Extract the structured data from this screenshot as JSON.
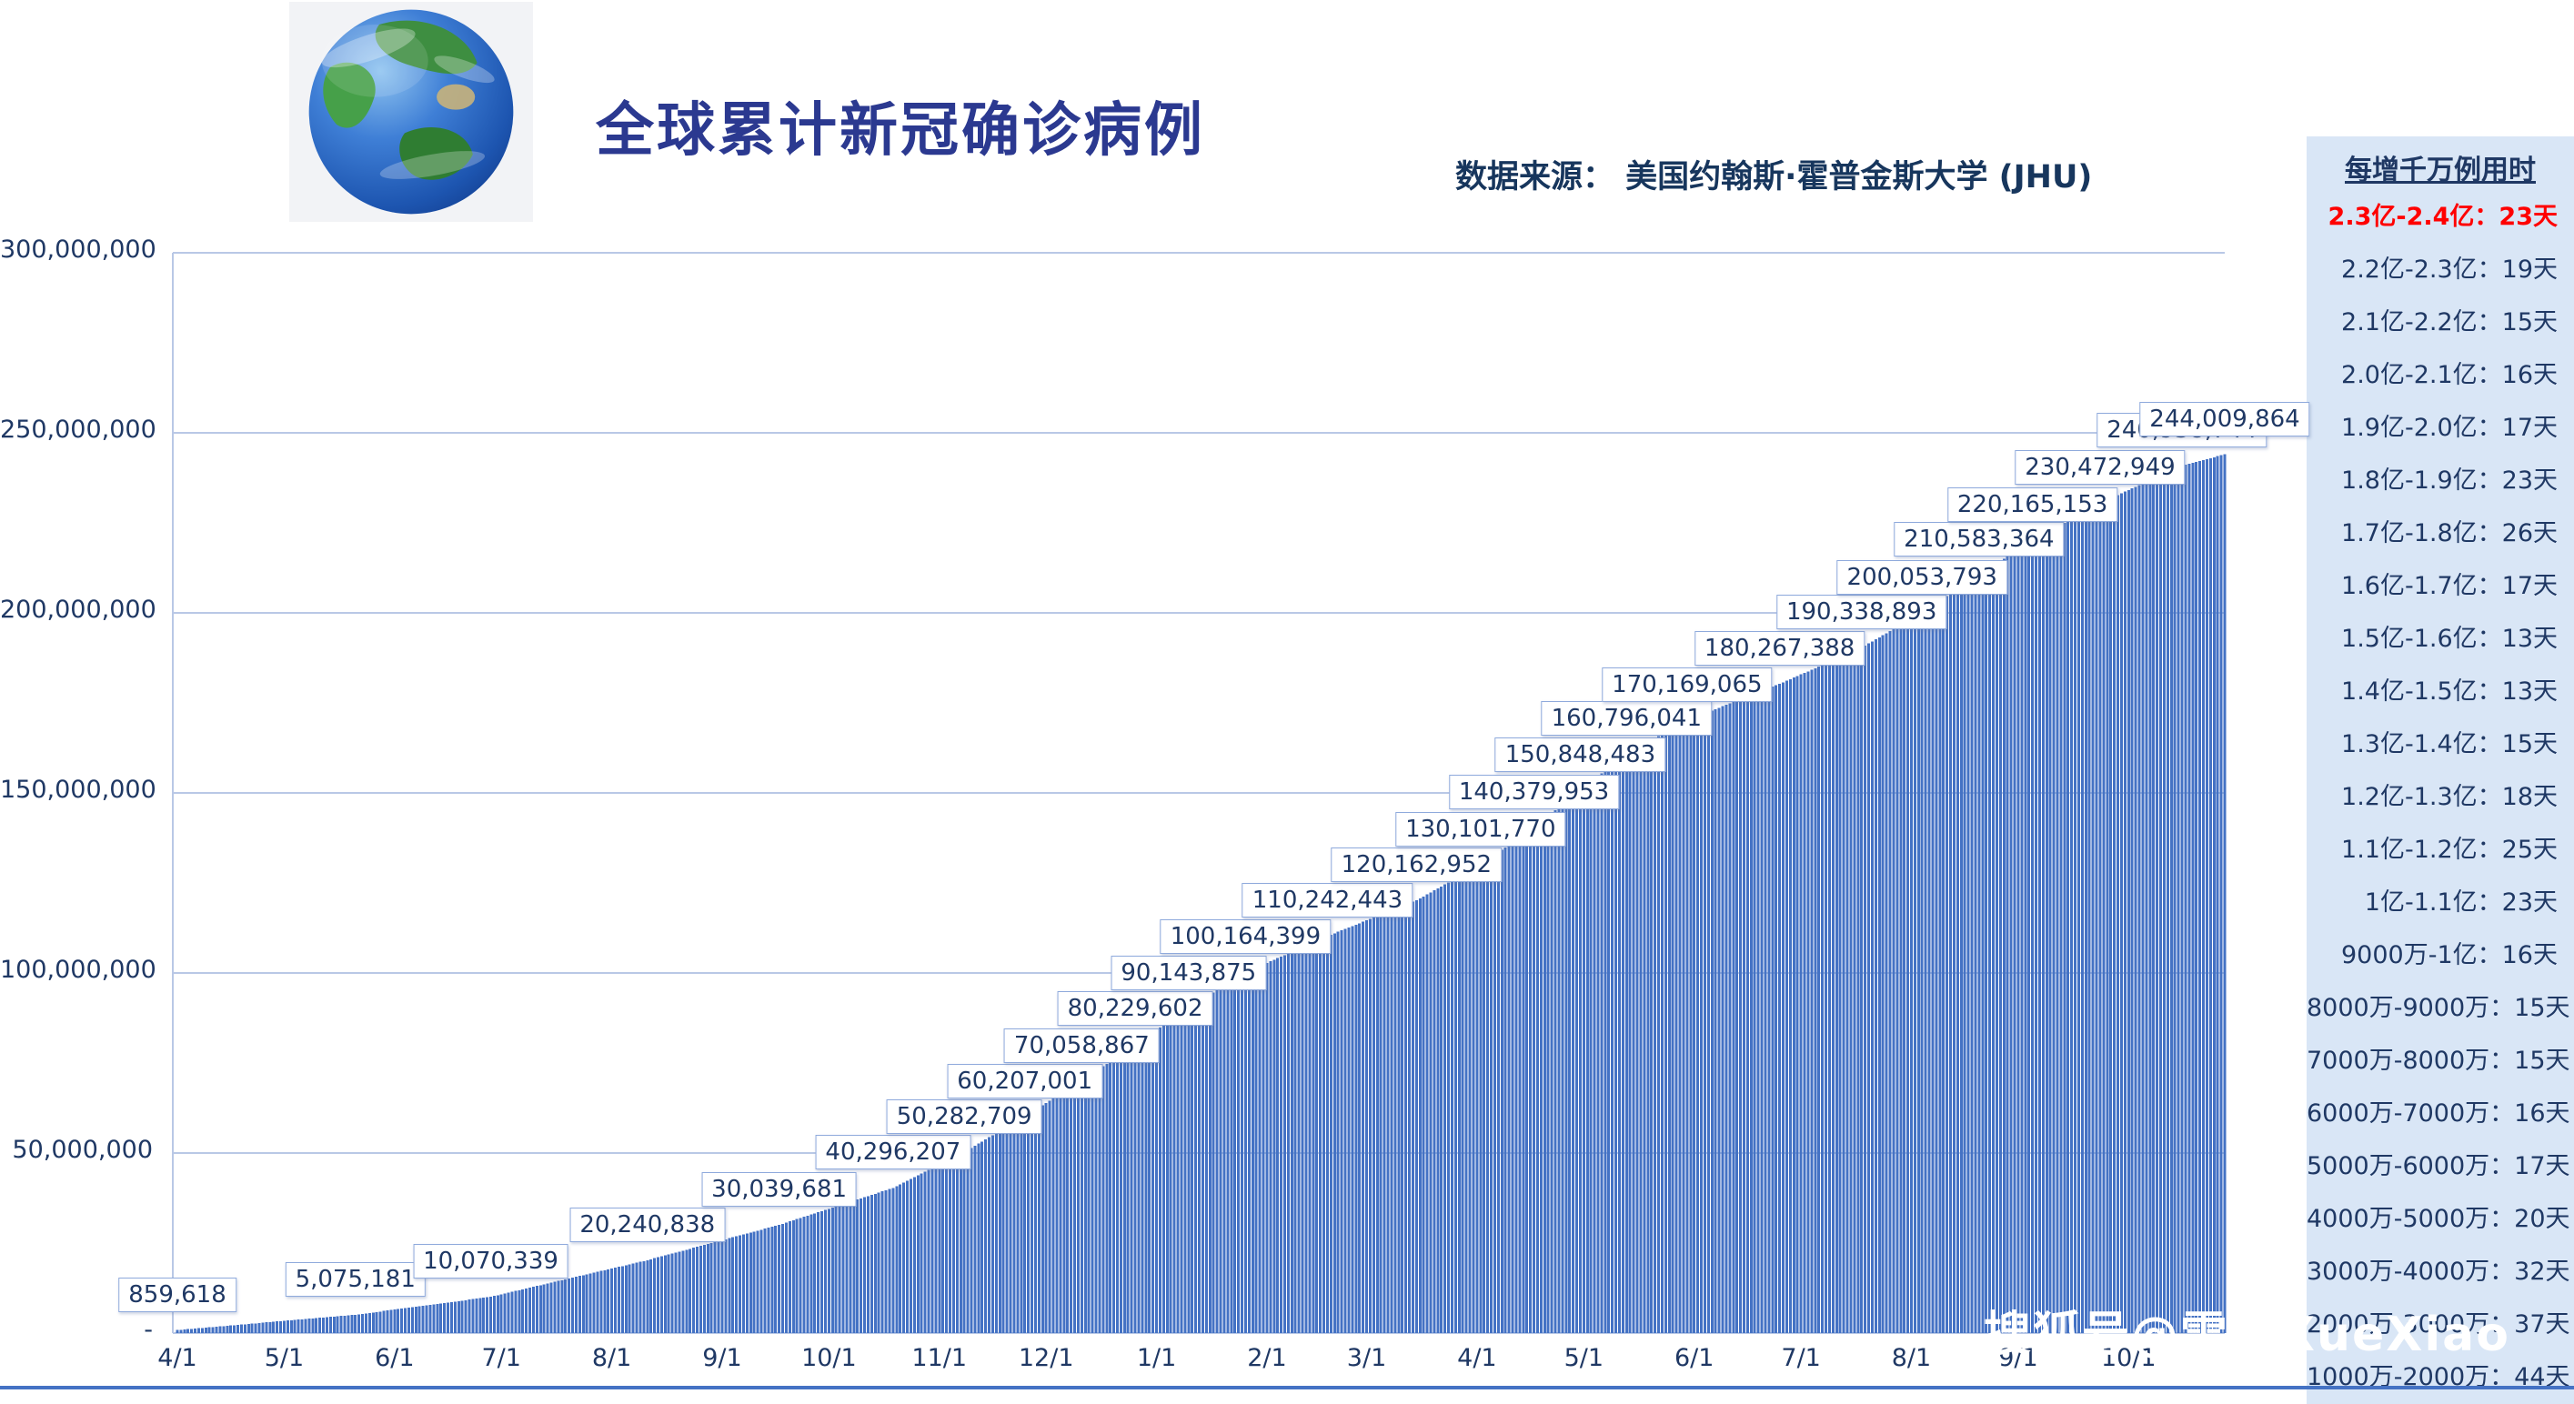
{
  "page": {
    "title": "全球累计新冠确诊病例",
    "source": "数据来源： 美国约翰斯·霍普金斯大学 (JHU)",
    "watermark": "搜狐号@雪鸮XueXiao"
  },
  "colors": {
    "bar_blue": "#4472C4",
    "navy_text": "#1F3864",
    "title_blue": "#2B3990",
    "panel_bg": "#D9E6F6",
    "highlight_red": "#FF0000",
    "gridline": "#B9C8E6"
  },
  "side_panel": {
    "title": "每增千万例用时",
    "rows": [
      {
        "range": "2.3亿-2.4亿",
        "days": "23天",
        "highlight": true
      },
      {
        "range": "2.2亿-2.3亿",
        "days": "19天",
        "highlight": false
      },
      {
        "range": "2.1亿-2.2亿",
        "days": "15天",
        "highlight": false
      },
      {
        "range": "2.0亿-2.1亿",
        "days": "16天",
        "highlight": false
      },
      {
        "range": "1.9亿-2.0亿",
        "days": "17天",
        "highlight": false
      },
      {
        "range": "1.8亿-1.9亿",
        "days": "23天",
        "highlight": false
      },
      {
        "range": "1.7亿-1.8亿",
        "days": "26天",
        "highlight": false
      },
      {
        "range": "1.6亿-1.7亿",
        "days": "17天",
        "highlight": false
      },
      {
        "range": "1.5亿-1.6亿",
        "days": "13天",
        "highlight": false
      },
      {
        "range": "1.4亿-1.5亿",
        "days": "13天",
        "highlight": false
      },
      {
        "range": "1.3亿-1.4亿",
        "days": "15天",
        "highlight": false
      },
      {
        "range": "1.2亿-1.3亿",
        "days": "18天",
        "highlight": false
      },
      {
        "range": "1.1亿-1.2亿",
        "days": "25天",
        "highlight": false
      },
      {
        "range": "1亿-1.1亿",
        "days": "23天",
        "highlight": false
      },
      {
        "range": "9000万-1亿",
        "days": "16天",
        "highlight": false
      },
      {
        "range": "8000万-9000万",
        "days": "15天",
        "highlight": false
      },
      {
        "range": "7000万-8000万",
        "days": "15天",
        "highlight": false
      },
      {
        "range": "6000万-7000万",
        "days": "16天",
        "highlight": false
      },
      {
        "range": "5000万-6000万",
        "days": "17天",
        "highlight": false
      },
      {
        "range": "4000万-5000万",
        "days": "20天",
        "highlight": false
      },
      {
        "range": "3000万-4000万",
        "days": "32天",
        "highlight": false
      },
      {
        "range": "2000万-3000万",
        "days": "37天",
        "highlight": false
      },
      {
        "range": "1000万-2000万",
        "days": "44天",
        "highlight": false
      }
    ]
  },
  "chart_data": {
    "type": "bar",
    "title": "全球累计新冠确诊病例",
    "xlabel": "",
    "ylabel": "",
    "bar_color": "#4472C4",
    "ylim": [
      0,
      300000000
    ],
    "grid": true,
    "y_ticks": [
      {
        "value": 300000000,
        "label": "300,000,000"
      },
      {
        "value": 250000000,
        "label": "250,000,000"
      },
      {
        "value": 200000000,
        "label": "200,000,000"
      },
      {
        "value": 150000000,
        "label": "150,000,000"
      },
      {
        "value": 100000000,
        "label": "100,000,000"
      },
      {
        "value": 50000000,
        "label": "50,000,000"
      },
      {
        "value": 0,
        "label": "-"
      }
    ],
    "x_ticks": [
      {
        "day": 0,
        "label": "4/1"
      },
      {
        "day": 30,
        "label": "5/1"
      },
      {
        "day": 61,
        "label": "6/1"
      },
      {
        "day": 91,
        "label": "7/1"
      },
      {
        "day": 122,
        "label": "8/1"
      },
      {
        "day": 153,
        "label": "9/1"
      },
      {
        "day": 183,
        "label": "10/1"
      },
      {
        "day": 214,
        "label": "11/1"
      },
      {
        "day": 244,
        "label": "12/1"
      },
      {
        "day": 275,
        "label": "1/1"
      },
      {
        "day": 306,
        "label": "2/1"
      },
      {
        "day": 334,
        "label": "3/1"
      },
      {
        "day": 365,
        "label": "4/1"
      },
      {
        "day": 395,
        "label": "5/1"
      },
      {
        "day": 426,
        "label": "6/1"
      },
      {
        "day": 456,
        "label": "7/1"
      },
      {
        "day": 487,
        "label": "8/1"
      },
      {
        "day": 517,
        "label": "9/1"
      },
      {
        "day": 548,
        "label": "10/1"
      }
    ],
    "total_days": 575,
    "milestones": [
      {
        "day": 0,
        "value": 859618,
        "label": "859,618"
      },
      {
        "day": 50,
        "value": 5075181,
        "label": "5,075,181"
      },
      {
        "day": 88,
        "value": 10070339,
        "label": "10,070,339"
      },
      {
        "day": 132,
        "value": 20240838,
        "label": "20,240,838"
      },
      {
        "day": 169,
        "value": 30039681,
        "label": "30,039,681"
      },
      {
        "day": 201,
        "value": 40296207,
        "label": "40,296,207"
      },
      {
        "day": 221,
        "value": 50282709,
        "label": "50,282,709"
      },
      {
        "day": 238,
        "value": 60207001,
        "label": "60,207,001"
      },
      {
        "day": 254,
        "value": 70058867,
        "label": "70,058,867"
      },
      {
        "day": 269,
        "value": 80229602,
        "label": "80,229,602"
      },
      {
        "day": 284,
        "value": 90143875,
        "label": "90,143,875"
      },
      {
        "day": 300,
        "value": 100164399,
        "label": "100,164,399"
      },
      {
        "day": 323,
        "value": 110242443,
        "label": "110,242,443"
      },
      {
        "day": 348,
        "value": 120162952,
        "label": "120,162,952"
      },
      {
        "day": 366,
        "value": 130101770,
        "label": "130,101,770"
      },
      {
        "day": 381,
        "value": 140379953,
        "label": "140,379,953"
      },
      {
        "day": 394,
        "value": 150848483,
        "label": "150,848,483"
      },
      {
        "day": 407,
        "value": 160796041,
        "label": "160,796,041"
      },
      {
        "day": 424,
        "value": 170169065,
        "label": "170,169,065"
      },
      {
        "day": 450,
        "value": 180267388,
        "label": "180,267,388"
      },
      {
        "day": 473,
        "value": 190338893,
        "label": "190,338,893"
      },
      {
        "day": 490,
        "value": 200053793,
        "label": "200,053,793"
      },
      {
        "day": 506,
        "value": 210583364,
        "label": "210,583,364"
      },
      {
        "day": 521,
        "value": 220165153,
        "label": "220,165,153"
      },
      {
        "day": 540,
        "value": 230472949,
        "label": "230,472,949"
      },
      {
        "day": 563,
        "value": 240938744,
        "label": "240,938,744",
        "obscured": true
      },
      {
        "day": 575,
        "value": 244009864,
        "label": "244,009,864",
        "final": true
      }
    ]
  }
}
